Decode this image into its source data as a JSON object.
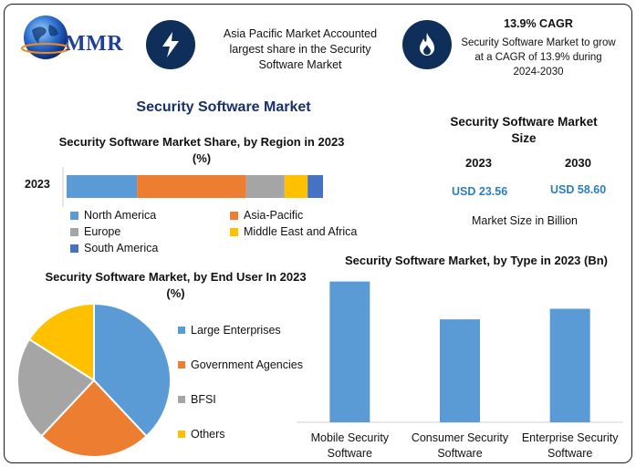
{
  "logo": {
    "text": "MMR"
  },
  "info_left": {
    "text": "Asia Pacific Market Accounted largest share in the Security Software Market"
  },
  "info_right": {
    "title": "13.9% CAGR",
    "text": "Security Software Market to grow at a CAGR of 13.9% during 2024-2030"
  },
  "main_title": "Security Software Market",
  "market_size": {
    "title": "Security Software Market Size",
    "year1": "2023",
    "year2": "2030",
    "value1": "USD 23.56",
    "value2": "USD 58.60",
    "note": "Market Size in Billion"
  },
  "colors": {
    "blue": "#5b9bd5",
    "orange": "#ed7d31",
    "gray": "#a5a5a5",
    "yellow": "#ffc000",
    "darkblue": "#4472c4",
    "navy": "#0f2f5a"
  },
  "chart_data": [
    {
      "type": "bar",
      "orientation": "horizontal-stacked",
      "title": "Security Software Market Share, by Region in 2023 (%)",
      "categories": [
        "2023"
      ],
      "series": [
        {
          "name": "North America",
          "values": [
            27.5
          ]
        },
        {
          "name": "Asia-Pacific",
          "values": [
            42.5
          ]
        },
        {
          "name": "Europe",
          "values": [
            15
          ]
        },
        {
          "name": "Middle East and Africa",
          "values": [
            9
          ]
        },
        {
          "name": "South America",
          "values": [
            6
          ]
        }
      ],
      "legend": "bottom"
    },
    {
      "type": "pie",
      "title": "Security Software Market, by End User In 2023 (%)",
      "labels": [
        "Large Enterprises",
        "Government Agencies",
        "BFSI",
        "Others"
      ],
      "values": [
        38,
        24,
        22,
        16
      ],
      "legend": "right"
    },
    {
      "type": "bar",
      "title": "Security Software Market, by Type in 2023 (Bn)",
      "categories": [
        "Mobile Security Software",
        "Consumer Security Software",
        "Enterprise Security Software"
      ],
      "values": [
        9.3,
        6.8,
        7.5
      ],
      "ylim": [
        0,
        10
      ]
    }
  ]
}
